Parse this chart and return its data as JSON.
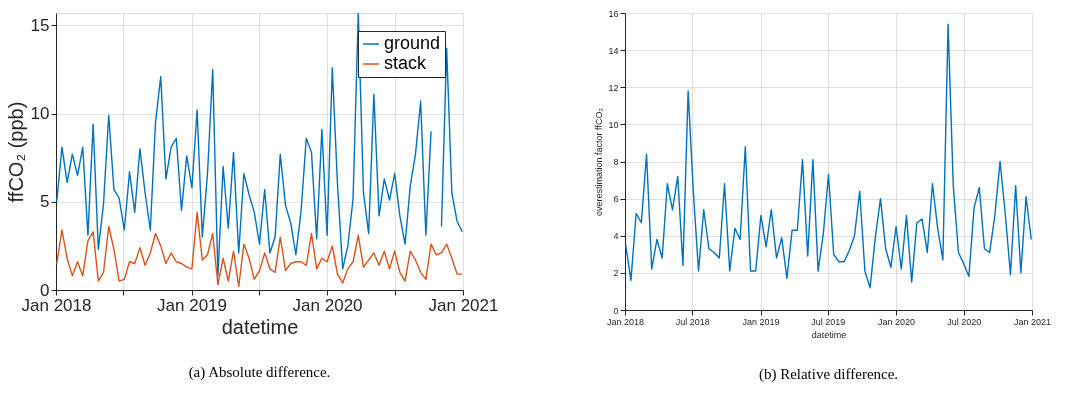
{
  "chart_data": [
    {
      "type": "line",
      "xlabel": "datetime",
      "ylabel": "ffCO₂ (ppb)",
      "annotations": [
        "(a) Absolute difference."
      ],
      "x": [
        "2018-01-03",
        "2018-01-17",
        "2018-01-31",
        "2018-02-14",
        "2018-02-28",
        "2018-03-14",
        "2018-03-28",
        "2018-04-11",
        "2018-04-25",
        "2018-05-09",
        "2018-05-23",
        "2018-06-06",
        "2018-06-20",
        "2018-07-04",
        "2018-07-18",
        "2018-08-01",
        "2018-08-15",
        "2018-08-29",
        "2018-09-12",
        "2018-09-26",
        "2018-10-10",
        "2018-10-24",
        "2018-11-07",
        "2018-11-21",
        "2018-12-05",
        "2018-12-19",
        "2019-01-02",
        "2019-01-16",
        "2019-01-30",
        "2019-02-13",
        "2019-02-27",
        "2019-03-13",
        "2019-03-27",
        "2019-04-10",
        "2019-04-24",
        "2019-05-08",
        "2019-05-22",
        "2019-06-05",
        "2019-06-19",
        "2019-07-03",
        "2019-07-17",
        "2019-07-31",
        "2019-08-14",
        "2019-08-28",
        "2019-09-11",
        "2019-09-25",
        "2019-10-09",
        "2019-10-23",
        "2019-11-06",
        "2019-11-20",
        "2019-12-04",
        "2019-12-18",
        "2020-01-01",
        "2020-01-15",
        "2020-01-29",
        "2020-02-12",
        "2020-02-26",
        "2020-03-11",
        "2020-03-25",
        "2020-04-08",
        "2020-04-22",
        "2020-05-06",
        "2020-05-20",
        "2020-06-03",
        "2020-06-17",
        "2020-07-01",
        "2020-07-15",
        "2020-07-29",
        "2020-08-12",
        "2020-08-26",
        "2020-09-09",
        "2020-09-23",
        "2020-10-07",
        "2020-10-21",
        "2020-11-04",
        "2020-11-18",
        "2020-12-02",
        "2020-12-16",
        "2020-12-30"
      ],
      "series": [
        {
          "name": "ground",
          "color": "#0072bd",
          "values": [
            5.0,
            8.1,
            6.1,
            7.7,
            6.5,
            8.1,
            3.1,
            9.4,
            2.3,
            4.9,
            9.9,
            5.7,
            5.2,
            3.4,
            6.7,
            4.4,
            8.0,
            5.5,
            3.4,
            9.5,
            12.1,
            6.3,
            8.1,
            8.6,
            4.5,
            7.6,
            5.8,
            10.2,
            3.0,
            6.6,
            12.5,
            0.8,
            7.0,
            3.5,
            7.8,
            2.1,
            6.6,
            5.4,
            4.4,
            2.6,
            5.7,
            2.1,
            3.0,
            7.7,
            4.8,
            3.8,
            2.0,
            4.5,
            8.6,
            7.8,
            2.9,
            9.1,
            3.1,
            12.6,
            6.0,
            1.2,
            2.5,
            5.2,
            15.7,
            5.5,
            3.2,
            11.1,
            4.2,
            6.3,
            5.1,
            6.6,
            4.2,
            2.6,
            5.9,
            7.7,
            10.7,
            3.1,
            9.0,
            null,
            3.6,
            13.7,
            5.5,
            3.9,
            3.3
          ]
        },
        {
          "name": "stack",
          "color": "#d95319",
          "values": [
            1.5,
            3.4,
            1.8,
            0.8,
            1.6,
            0.8,
            2.8,
            3.3,
            0.5,
            1.0,
            3.6,
            2.3,
            0.5,
            0.6,
            1.6,
            1.5,
            2.4,
            1.4,
            2.1,
            3.2,
            2.5,
            1.5,
            2.1,
            1.6,
            1.5,
            1.3,
            1.2,
            4.4,
            1.7,
            2.0,
            3.2,
            0.3,
            1.8,
            0.5,
            2.2,
            0.2,
            2.6,
            1.8,
            0.6,
            1.1,
            2.1,
            1.2,
            1.0,
            3.0,
            1.1,
            1.5,
            1.6,
            1.6,
            1.4,
            3.2,
            1.2,
            1.8,
            1.6,
            2.5,
            0.9,
            0.4,
            1.2,
            1.6,
            3.1,
            1.3,
            1.7,
            2.1,
            1.4,
            2.2,
            1.2,
            2.2,
            1.0,
            0.5,
            2.2,
            1.7,
            1.0,
            0.6,
            2.6,
            2.0,
            2.1,
            2.6,
            1.8,
            0.9,
            0.9
          ]
        }
      ],
      "xlim": [
        "2018-01-01",
        "2021-01-01"
      ],
      "xticks": [
        {
          "value": "2018-01-01",
          "label": "Jan 2018"
        },
        {
          "value": "2018-07-01",
          "label": null
        },
        {
          "value": "2019-01-01",
          "label": "Jan 2019"
        },
        {
          "value": "2019-07-01",
          "label": null
        },
        {
          "value": "2020-01-01",
          "label": "Jan 2020"
        },
        {
          "value": "2020-07-01",
          "label": null
        },
        {
          "value": "2021-01-01",
          "label": "Jan 2021"
        }
      ],
      "ylim": [
        0,
        15.7
      ],
      "yticks": [
        0,
        5,
        10,
        15
      ],
      "grid": true,
      "legend": "top right"
    },
    {
      "type": "line",
      "xlabel": "datetime",
      "ylabel": "overestimation factor ffCO₂",
      "annotations": [
        "(b) Relative difference."
      ],
      "x": [
        "2018-01-03",
        "2018-01-17",
        "2018-01-31",
        "2018-02-14",
        "2018-02-28",
        "2018-03-14",
        "2018-03-28",
        "2018-04-11",
        "2018-04-25",
        "2018-05-09",
        "2018-05-23",
        "2018-06-06",
        "2018-06-20",
        "2018-07-04",
        "2018-07-18",
        "2018-08-01",
        "2018-08-15",
        "2018-08-29",
        "2018-09-12",
        "2018-09-26",
        "2018-10-10",
        "2018-10-24",
        "2018-11-07",
        "2018-11-21",
        "2018-12-05",
        "2018-12-19",
        "2019-01-02",
        "2019-01-16",
        "2019-01-30",
        "2019-02-13",
        "2019-02-27",
        "2019-03-13",
        "2019-03-27",
        "2019-04-10",
        "2019-04-24",
        "2019-05-08",
        "2019-05-22",
        "2019-06-05",
        "2019-06-19",
        "2019-07-03",
        "2019-07-17",
        "2019-07-31",
        "2019-08-14",
        "2019-08-28",
        "2019-09-11",
        "2019-09-25",
        "2019-10-09",
        "2019-10-23",
        "2019-11-06",
        "2019-11-20",
        "2019-12-04",
        "2019-12-18",
        "2020-01-01",
        "2020-01-15",
        "2020-01-29",
        "2020-02-12",
        "2020-02-26",
        "2020-03-11",
        "2020-03-25",
        "2020-04-08",
        "2020-04-22",
        "2020-05-06",
        "2020-05-20",
        "2020-06-03",
        "2020-06-17",
        "2020-07-01",
        "2020-07-15",
        "2020-07-29",
        "2020-08-12",
        "2020-08-26",
        "2020-09-09",
        "2020-09-23",
        "2020-10-07",
        "2020-10-21",
        "2020-11-04",
        "2020-11-18",
        "2020-12-02",
        "2020-12-16",
        "2020-12-30"
      ],
      "series": [
        {
          "color": "#0072bd",
          "values": [
            3.5,
            1.6,
            5.2,
            4.7,
            8.4,
            2.2,
            3.8,
            2.8,
            6.8,
            5.4,
            7.2,
            2.4,
            11.8,
            6.4,
            2.1,
            5.4,
            3.3,
            3.1,
            2.8,
            6.8,
            2.1,
            4.4,
            3.8,
            8.8,
            2.1,
            2.1,
            5.1,
            3.4,
            5.4,
            2.8,
            3.9,
            1.7,
            4.3,
            4.3,
            8.1,
            2.9,
            8.1,
            2.1,
            4.1,
            7.3,
            3.0,
            2.6,
            2.6,
            3.2,
            4.0,
            6.4,
            2.1,
            1.2,
            3.9,
            6.0,
            3.3,
            2.3,
            4.5,
            2.2,
            5.1,
            1.5,
            4.7,
            4.9,
            3.1,
            6.8,
            4.4,
            2.7,
            15.4,
            6.7,
            3.1,
            2.5,
            1.8,
            5.5,
            6.6,
            3.3,
            3.1,
            5.1,
            8.0,
            5.2,
            1.9,
            6.7,
            2.0,
            6.1,
            3.8
          ]
        }
      ],
      "xlim": [
        "2018-01-01",
        "2021-01-01"
      ],
      "xticks": [
        {
          "value": "2018-01-01",
          "label": "Jan 2018"
        },
        {
          "value": "2018-07-01",
          "label": "Jul 2018"
        },
        {
          "value": "2019-01-01",
          "label": "Jan 2019"
        },
        {
          "value": "2019-07-01",
          "label": "Jul 2019"
        },
        {
          "value": "2020-01-01",
          "label": "Jan 2020"
        },
        {
          "value": "2020-07-01",
          "label": "Jul 2020"
        },
        {
          "value": "2021-01-01",
          "label": "Jan 2021"
        }
      ],
      "ylim": [
        0,
        16
      ],
      "yticks": [
        0,
        2,
        4,
        6,
        8,
        10,
        12,
        14,
        16
      ],
      "grid": true
    }
  ]
}
